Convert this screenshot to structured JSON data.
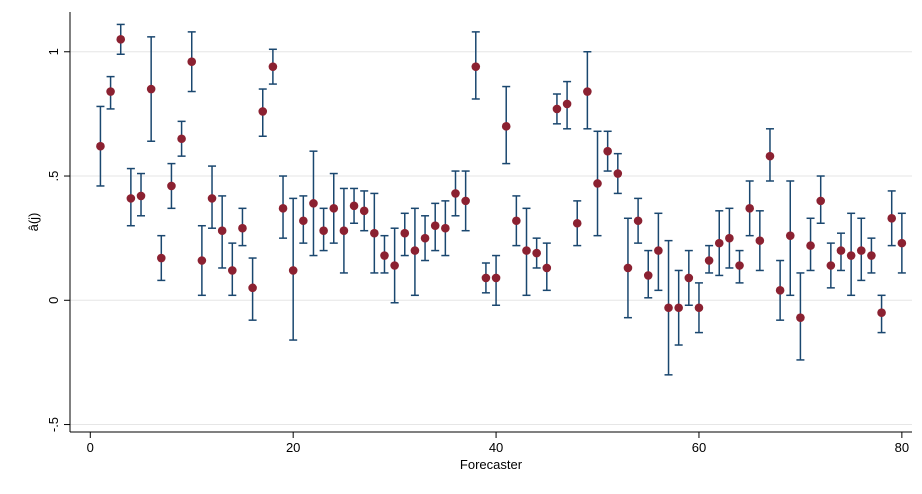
{
  "chart_data": {
    "type": "scatter",
    "xlabel": "Forecaster",
    "ylabel": "â(j)",
    "xlim": [
      -2,
      81
    ],
    "ylim": [
      -0.53,
      1.16
    ],
    "x_ticks": [
      0,
      20,
      40,
      60,
      80
    ],
    "x_tick_labels": [
      "0",
      "20",
      "40",
      "60",
      "80"
    ],
    "y_ticks": [
      -0.5,
      0,
      0.5,
      1
    ],
    "y_tick_labels": [
      "-.5",
      "0",
      ".5",
      "1"
    ],
    "grid": true,
    "legend": "none",
    "colors": {
      "point": "#8b2131",
      "errorbar": "#1a476f",
      "grid": "#e6e6e6",
      "axis": "#000000"
    },
    "points": [
      {
        "x": 1,
        "y": 0.62,
        "lo": 0.46,
        "hi": 0.78
      },
      {
        "x": 2,
        "y": 0.84,
        "lo": 0.77,
        "hi": 0.9
      },
      {
        "x": 3,
        "y": 1.05,
        "lo": 0.99,
        "hi": 1.11
      },
      {
        "x": 4,
        "y": 0.41,
        "lo": 0.3,
        "hi": 0.53
      },
      {
        "x": 5,
        "y": 0.42,
        "lo": 0.34,
        "hi": 0.51
      },
      {
        "x": 6,
        "y": 0.85,
        "lo": 0.64,
        "hi": 1.06
      },
      {
        "x": 7,
        "y": 0.17,
        "lo": 0.08,
        "hi": 0.26
      },
      {
        "x": 8,
        "y": 0.46,
        "lo": 0.37,
        "hi": 0.55
      },
      {
        "x": 9,
        "y": 0.65,
        "lo": 0.58,
        "hi": 0.72
      },
      {
        "x": 10,
        "y": 0.96,
        "lo": 0.84,
        "hi": 1.08
      },
      {
        "x": 11,
        "y": 0.16,
        "lo": 0.02,
        "hi": 0.3
      },
      {
        "x": 12,
        "y": 0.41,
        "lo": 0.29,
        "hi": 0.54
      },
      {
        "x": 13,
        "y": 0.28,
        "lo": 0.13,
        "hi": 0.42
      },
      {
        "x": 14,
        "y": 0.12,
        "lo": 0.02,
        "hi": 0.23
      },
      {
        "x": 15,
        "y": 0.29,
        "lo": 0.22,
        "hi": 0.37
      },
      {
        "x": 16,
        "y": 0.05,
        "lo": -0.08,
        "hi": 0.17
      },
      {
        "x": 17,
        "y": 0.76,
        "lo": 0.66,
        "hi": 0.85
      },
      {
        "x": 18,
        "y": 0.94,
        "lo": 0.87,
        "hi": 1.01
      },
      {
        "x": 19,
        "y": 0.37,
        "lo": 0.25,
        "hi": 0.5
      },
      {
        "x": 20,
        "y": 0.12,
        "lo": -0.16,
        "hi": 0.41
      },
      {
        "x": 21,
        "y": 0.32,
        "lo": 0.23,
        "hi": 0.42
      },
      {
        "x": 22,
        "y": 0.39,
        "lo": 0.18,
        "hi": 0.6
      },
      {
        "x": 23,
        "y": 0.28,
        "lo": 0.2,
        "hi": 0.37
      },
      {
        "x": 24,
        "y": 0.37,
        "lo": 0.23,
        "hi": 0.51
      },
      {
        "x": 25,
        "y": 0.28,
        "lo": 0.11,
        "hi": 0.45
      },
      {
        "x": 26,
        "y": 0.38,
        "lo": 0.31,
        "hi": 0.45
      },
      {
        "x": 27,
        "y": 0.36,
        "lo": 0.28,
        "hi": 0.44
      },
      {
        "x": 28,
        "y": 0.27,
        "lo": 0.11,
        "hi": 0.43
      },
      {
        "x": 29,
        "y": 0.18,
        "lo": 0.11,
        "hi": 0.26
      },
      {
        "x": 30,
        "y": 0.14,
        "lo": -0.01,
        "hi": 0.29
      },
      {
        "x": 31,
        "y": 0.27,
        "lo": 0.18,
        "hi": 0.35
      },
      {
        "x": 32,
        "y": 0.2,
        "lo": 0.02,
        "hi": 0.37
      },
      {
        "x": 33,
        "y": 0.25,
        "lo": 0.16,
        "hi": 0.34
      },
      {
        "x": 34,
        "y": 0.3,
        "lo": 0.2,
        "hi": 0.39
      },
      {
        "x": 35,
        "y": 0.29,
        "lo": 0.18,
        "hi": 0.4
      },
      {
        "x": 36,
        "y": 0.43,
        "lo": 0.34,
        "hi": 0.52
      },
      {
        "x": 37,
        "y": 0.4,
        "lo": 0.28,
        "hi": 0.52
      },
      {
        "x": 38,
        "y": 0.94,
        "lo": 0.81,
        "hi": 1.08
      },
      {
        "x": 39,
        "y": 0.09,
        "lo": 0.03,
        "hi": 0.15
      },
      {
        "x": 40,
        "y": 0.09,
        "lo": -0.02,
        "hi": 0.18
      },
      {
        "x": 41,
        "y": 0.7,
        "lo": 0.55,
        "hi": 0.86
      },
      {
        "x": 42,
        "y": 0.32,
        "lo": 0.22,
        "hi": 0.42
      },
      {
        "x": 43,
        "y": 0.2,
        "lo": 0.02,
        "hi": 0.37
      },
      {
        "x": 44,
        "y": 0.19,
        "lo": 0.13,
        "hi": 0.25
      },
      {
        "x": 45,
        "y": 0.13,
        "lo": 0.04,
        "hi": 0.23
      },
      {
        "x": 46,
        "y": 0.77,
        "lo": 0.71,
        "hi": 0.83
      },
      {
        "x": 47,
        "y": 0.79,
        "lo": 0.69,
        "hi": 0.88
      },
      {
        "x": 48,
        "y": 0.31,
        "lo": 0.22,
        "hi": 0.4
      },
      {
        "x": 49,
        "y": 0.84,
        "lo": 0.69,
        "hi": 1.0
      },
      {
        "x": 50,
        "y": 0.47,
        "lo": 0.26,
        "hi": 0.68
      },
      {
        "x": 51,
        "y": 0.6,
        "lo": 0.52,
        "hi": 0.68
      },
      {
        "x": 52,
        "y": 0.51,
        "lo": 0.43,
        "hi": 0.59
      },
      {
        "x": 53,
        "y": 0.13,
        "lo": -0.07,
        "hi": 0.33
      },
      {
        "x": 54,
        "y": 0.32,
        "lo": 0.23,
        "hi": 0.41
      },
      {
        "x": 55,
        "y": 0.1,
        "lo": 0.01,
        "hi": 0.2
      },
      {
        "x": 56,
        "y": 0.2,
        "lo": 0.04,
        "hi": 0.35
      },
      {
        "x": 57,
        "y": -0.03,
        "lo": -0.3,
        "hi": 0.24
      },
      {
        "x": 58,
        "y": -0.03,
        "lo": -0.18,
        "hi": 0.12
      },
      {
        "x": 59,
        "y": 0.09,
        "lo": -0.02,
        "hi": 0.2
      },
      {
        "x": 60,
        "y": -0.03,
        "lo": -0.13,
        "hi": 0.07
      },
      {
        "x": 61,
        "y": 0.16,
        "lo": 0.11,
        "hi": 0.22
      },
      {
        "x": 62,
        "y": 0.23,
        "lo": 0.1,
        "hi": 0.36
      },
      {
        "x": 63,
        "y": 0.25,
        "lo": 0.13,
        "hi": 0.37
      },
      {
        "x": 64,
        "y": 0.14,
        "lo": 0.07,
        "hi": 0.2
      },
      {
        "x": 65,
        "y": 0.37,
        "lo": 0.26,
        "hi": 0.48
      },
      {
        "x": 66,
        "y": 0.24,
        "lo": 0.12,
        "hi": 0.36
      },
      {
        "x": 67,
        "y": 0.58,
        "lo": 0.48,
        "hi": 0.69
      },
      {
        "x": 68,
        "y": 0.04,
        "lo": -0.08,
        "hi": 0.16
      },
      {
        "x": 69,
        "y": 0.26,
        "lo": 0.02,
        "hi": 0.48
      },
      {
        "x": 70,
        "y": -0.07,
        "lo": -0.24,
        "hi": 0.11
      },
      {
        "x": 71,
        "y": 0.22,
        "lo": 0.12,
        "hi": 0.33
      },
      {
        "x": 72,
        "y": 0.4,
        "lo": 0.31,
        "hi": 0.5
      },
      {
        "x": 73,
        "y": 0.14,
        "lo": 0.05,
        "hi": 0.23
      },
      {
        "x": 74,
        "y": 0.2,
        "lo": 0.12,
        "hi": 0.27
      },
      {
        "x": 75,
        "y": 0.18,
        "lo": 0.02,
        "hi": 0.35
      },
      {
        "x": 76,
        "y": 0.2,
        "lo": 0.08,
        "hi": 0.33
      },
      {
        "x": 77,
        "y": 0.18,
        "lo": 0.11,
        "hi": 0.25
      },
      {
        "x": 78,
        "y": -0.05,
        "lo": -0.13,
        "hi": 0.02
      },
      {
        "x": 79,
        "y": 0.33,
        "lo": 0.22,
        "hi": 0.44
      },
      {
        "x": 80,
        "y": 0.23,
        "lo": 0.11,
        "hi": 0.35
      }
    ]
  }
}
